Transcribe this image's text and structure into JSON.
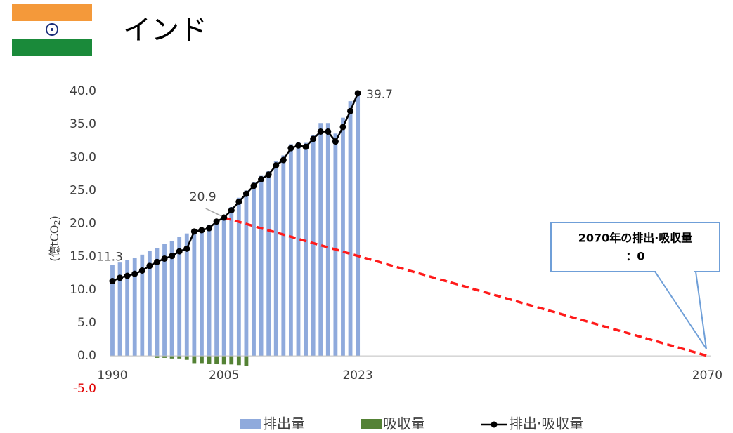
{
  "chart_data": {
    "type": "combo",
    "title": "インド",
    "ylabel_parts": [
      "(億tCO",
      "2",
      ")"
    ],
    "x": [
      1990,
      1991,
      1992,
      1993,
      1994,
      1995,
      1996,
      1997,
      1998,
      1999,
      2000,
      2001,
      2002,
      2003,
      2004,
      2005,
      2006,
      2007,
      2008,
      2009,
      2010,
      2011,
      2012,
      2013,
      2014,
      2015,
      2016,
      2017,
      2018,
      2019,
      2020,
      2021,
      2022,
      2023
    ],
    "xlim": [
      1989.7,
      2070.5
    ],
    "xticks": [
      1990,
      2005,
      2023,
      2070
    ],
    "ylim": [
      -5,
      40
    ],
    "yticks": [
      {
        "value": -5,
        "label": "-5.0"
      },
      {
        "value": 0,
        "label": "0.0"
      },
      {
        "value": 5,
        "label": "5.0"
      },
      {
        "value": 10,
        "label": "10.0"
      },
      {
        "value": 15,
        "label": "15.0"
      },
      {
        "value": 20,
        "label": "20.0"
      },
      {
        "value": 25,
        "label": "25.0"
      },
      {
        "value": 30,
        "label": "30.0"
      },
      {
        "value": 35,
        "label": "35.0"
      },
      {
        "value": 40,
        "label": "40.0"
      }
    ],
    "negative_tick_color": "#e00000",
    "grid": false,
    "series": [
      {
        "name": "排出量",
        "type": "bar",
        "color": "#8faadc",
        "values": [
          13.7,
          14.1,
          14.5,
          14.8,
          15.3,
          15.9,
          16.3,
          16.9,
          17.3,
          18.0,
          18.5,
          19.0,
          19.3,
          19.8,
          20.6,
          21.3,
          22.5,
          23.9,
          25.0,
          26.2,
          27.2,
          28.0,
          29.4,
          30.3,
          32.0,
          32.3,
          32.2,
          33.4,
          35.2,
          35.2,
          33.6,
          36.0,
          38.5,
          39.9
        ]
      },
      {
        "name": "吸収量",
        "type": "bar",
        "color": "#548235",
        "values": [
          null,
          null,
          null,
          null,
          null,
          null,
          -0.3,
          -0.3,
          -0.4,
          -0.4,
          -0.6,
          -1.1,
          -1.1,
          -1.2,
          -1.2,
          -1.3,
          -1.3,
          -1.4,
          -1.5,
          null,
          null,
          null,
          null,
          null,
          null,
          null,
          null,
          null,
          null,
          null,
          null,
          null,
          null,
          null
        ]
      },
      {
        "name": "排出·吸収量",
        "type": "line",
        "color": "#000000",
        "values": [
          11.3,
          11.8,
          12.1,
          12.4,
          12.9,
          13.6,
          14.2,
          14.7,
          15.1,
          15.8,
          16.2,
          18.8,
          19.0,
          19.3,
          20.3,
          20.9,
          22.0,
          23.3,
          24.5,
          25.7,
          26.7,
          27.4,
          28.8,
          29.6,
          31.4,
          31.8,
          31.6,
          32.8,
          33.9,
          33.9,
          32.4,
          34.6,
          37.0,
          39.7
        ],
        "value_labels": [
          "11.3",
          null,
          null,
          null,
          null,
          null,
          null,
          null,
          null,
          null,
          null,
          null,
          null,
          null,
          null,
          "20.9",
          null,
          null,
          null,
          null,
          null,
          null,
          null,
          null,
          null,
          null,
          null,
          null,
          null,
          null,
          null,
          null,
          null,
          "39.7"
        ]
      }
    ],
    "target_line": {
      "x": [
        2005,
        2070
      ],
      "values": [
        20.9,
        0
      ],
      "color": "#ff1a1a"
    },
    "callout": {
      "lines": [
        "2070年の排出·吸収量",
        "：0"
      ]
    }
  }
}
